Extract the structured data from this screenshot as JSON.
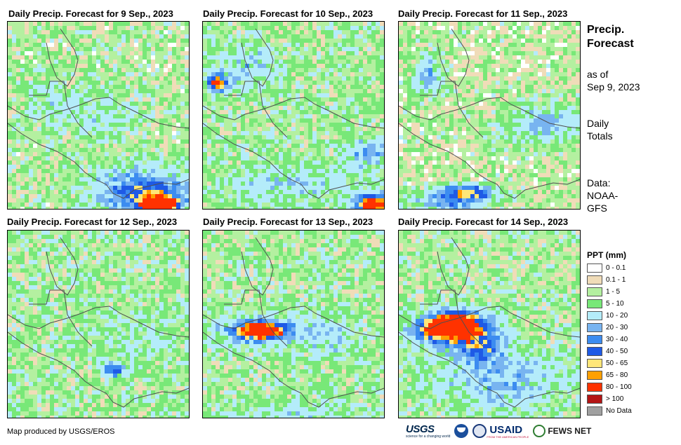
{
  "panels": [
    {
      "title": "Daily Precip. Forecast for 9 Sep., 2023"
    },
    {
      "title": "Daily Precip. Forecast for 10 Sep., 2023"
    },
    {
      "title": "Daily Precip. Forecast for 11 Sep., 2023"
    },
    {
      "title": "Daily Precip. Forecast for 12 Sep., 2023"
    },
    {
      "title": "Daily Precip. Forecast for 13 Sep., 2023"
    },
    {
      "title": "Daily Precip. Forecast for 14 Sep., 2023"
    }
  ],
  "side": {
    "title_line1": "Precip.",
    "title_line2": "Forecast",
    "asof_line1": "as of",
    "asof_line2": "Sep 9, 2023",
    "totals_line1": "Daily",
    "totals_line2": "Totals",
    "data_line1": "Data:",
    "data_line2": "NOAA-",
    "data_line3": "GFS"
  },
  "legend": {
    "title": "PPT (mm)",
    "items": [
      {
        "label": "0 - 0.1",
        "color": "#ffffff"
      },
      {
        "label": "0.1 - 1",
        "color": "#f0dcb8"
      },
      {
        "label": "1 - 5",
        "color": "#b4f0a0"
      },
      {
        "label": "5 - 10",
        "color": "#78e878"
      },
      {
        "label": "10 - 20",
        "color": "#b4ecfa"
      },
      {
        "label": "20 - 30",
        "color": "#78b4f0"
      },
      {
        "label": "30 - 40",
        "color": "#3c8cf0"
      },
      {
        "label": "40 - 50",
        "color": "#1e5ae6"
      },
      {
        "label": "50 - 65",
        "color": "#ffe678"
      },
      {
        "label": "65 - 80",
        "color": "#ffa000"
      },
      {
        "label": "80 - 100",
        "color": "#ff3200"
      },
      {
        "label": "> 100",
        "color": "#b41414"
      },
      {
        "label": "No Data",
        "color": "#a0a0a0"
      }
    ]
  },
  "footer": {
    "credit": "Map produced by USGS/EROS",
    "usgs_logo": "USGS",
    "usgs_tagline": "science for a changing world",
    "usaid_logo": "USAID",
    "usaid_tagline": "FROM THE AMERICAN PEOPLE",
    "fews_logo": "FEWS NET"
  }
}
